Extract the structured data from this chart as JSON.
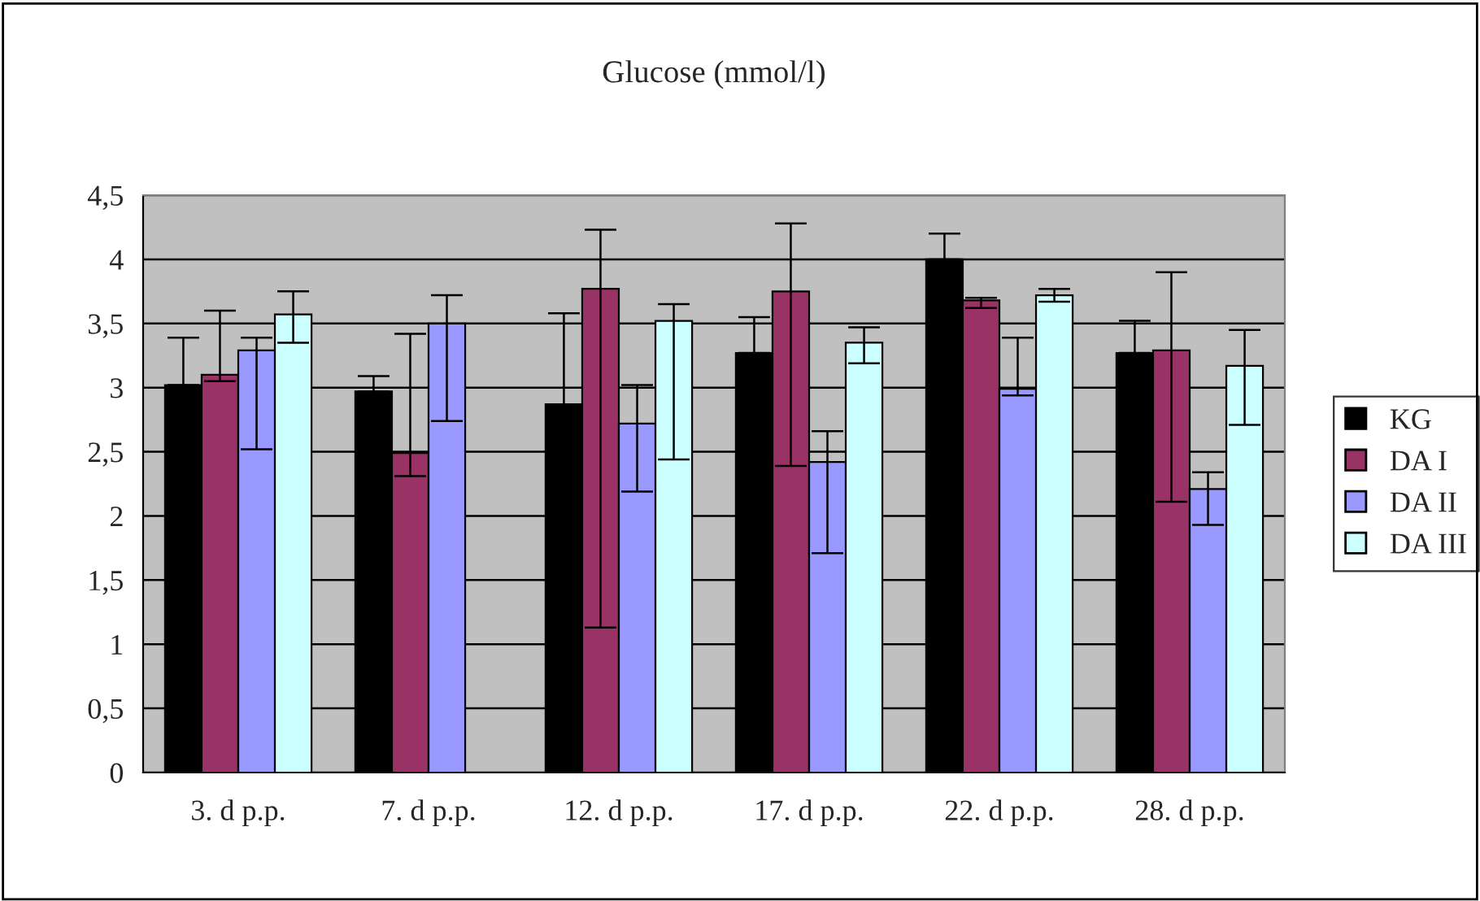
{
  "chart_data": {
    "type": "bar",
    "title": "Glucose (mmol/l)",
    "categories": [
      "3. d p.p.",
      "7. d p.p.",
      "12. d p.p.",
      "17. d p.p.",
      "22. d p.p.",
      "28. d p.p."
    ],
    "series": [
      {
        "name": "KG",
        "color": "#000000",
        "values": [
          3.02,
          2.97,
          2.87,
          3.27,
          4.0,
          3.27
        ],
        "errors": [
          [
            3.02,
            3.39
          ],
          [
            2.97,
            3.09
          ],
          [
            2.87,
            3.58
          ],
          [
            3.27,
            3.55
          ],
          [
            4.0,
            4.2
          ],
          [
            3.27,
            3.52
          ]
        ]
      },
      {
        "name": "DA I",
        "color": "#993366",
        "values": [
          3.1,
          2.49,
          3.77,
          3.75,
          3.68,
          3.29
        ],
        "errors": [
          [
            3.05,
            3.6
          ],
          [
            2.31,
            3.42
          ],
          [
            1.13,
            4.23
          ],
          [
            2.39,
            4.28
          ],
          [
            3.62,
            3.7
          ],
          [
            2.11,
            3.9
          ]
        ]
      },
      {
        "name": "DA II",
        "color": "#9999ff",
        "values": [
          3.29,
          3.5,
          2.72,
          2.42,
          2.99,
          2.21
        ],
        "errors": [
          [
            2.52,
            3.39
          ],
          [
            2.74,
            3.72
          ],
          [
            2.19,
            3.02
          ],
          [
            1.71,
            2.66
          ],
          [
            2.94,
            3.39
          ],
          [
            1.93,
            2.34
          ]
        ]
      },
      {
        "name": "DA III",
        "color": "#ccffff",
        "values": [
          3.57,
          null,
          3.52,
          3.35,
          3.72,
          3.17
        ],
        "errors": [
          [
            3.35,
            3.75
          ],
          null,
          [
            2.44,
            3.65
          ],
          [
            3.19,
            3.47
          ],
          [
            3.67,
            3.77
          ],
          [
            2.71,
            3.45
          ]
        ]
      }
    ],
    "ylim": [
      0,
      4.5
    ],
    "yticks": [
      0,
      {
        "value": 0.5,
        "label": "0,5"
      },
      1,
      {
        "value": 1.5,
        "label": "1,5"
      },
      2,
      {
        "value": 2.5,
        "label": "2,5"
      },
      3,
      {
        "value": 3.5,
        "label": "3,5"
      },
      4,
      {
        "value": 4.5,
        "label": "4,5"
      }
    ],
    "grid": "y",
    "legend": "right"
  }
}
